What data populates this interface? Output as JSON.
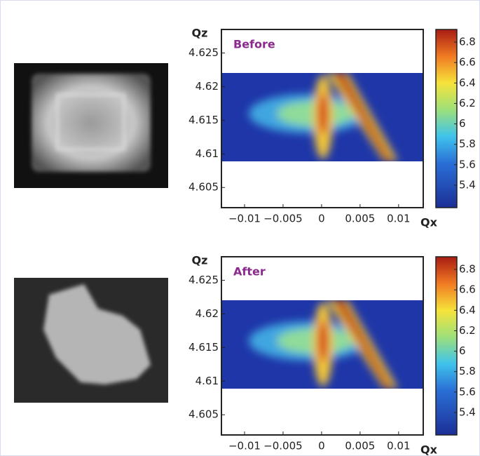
{
  "chart_data": [
    {
      "type": "heatmap",
      "title": "Before",
      "xlabel": "Qx",
      "ylabel": "Qz",
      "xlim": [
        -0.013,
        0.0132
      ],
      "ylim": [
        4.602,
        4.6285
      ],
      "xticks": [
        {
          "value": -0.01,
          "label": "−0.01"
        },
        {
          "value": -0.005,
          "label": "−0.005"
        },
        0,
        0.005,
        0.01
      ],
      "yticks": [
        4.605,
        4.61,
        4.615,
        4.62,
        4.625
      ],
      "clim": [
        5.18,
        6.924
      ],
      "cticks": [
        5.4,
        5.6,
        5.8,
        6,
        6.2,
        6.4,
        6.6,
        6.8
      ]
    },
    {
      "type": "heatmap",
      "title": "After",
      "xlabel": "Qx",
      "ylabel": "Qz",
      "xlim": [
        -0.013,
        0.0132
      ],
      "ylim": [
        4.602,
        4.6285
      ],
      "xticks": [
        {
          "value": -0.01,
          "label": "−0.01"
        },
        {
          "value": -0.005,
          "label": "−0.005"
        },
        0,
        0.005,
        0.01
      ],
      "yticks": [
        4.605,
        4.61,
        4.615,
        4.62,
        4.625
      ],
      "clim": [
        5.18,
        6.924
      ],
      "cticks": [
        5.4,
        5.6,
        5.8,
        6,
        6.2,
        6.4,
        6.6,
        6.8
      ]
    }
  ]
}
